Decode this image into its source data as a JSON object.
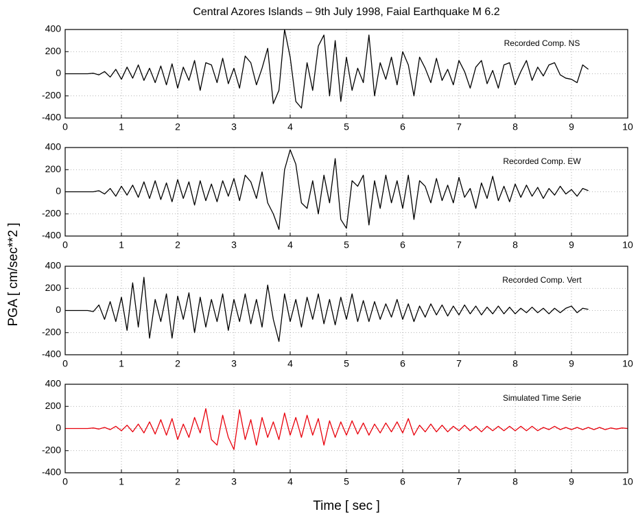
{
  "title": "Central Azores Islands – 9th July 1998, Faial Earthquake M 6.2",
  "xlabel": "Time [ sec ]",
  "ylabel": "PGA [ cm/sec**2 ]",
  "chart_data": [
    {
      "type": "line",
      "annotation": "Recorded Comp. NS",
      "color": "#000000",
      "grid": true,
      "xlim": [
        0,
        10
      ],
      "xticks": [
        0,
        1,
        2,
        3,
        4,
        5,
        6,
        7,
        8,
        9,
        10
      ],
      "ylim": [
        -400,
        400
      ],
      "yticks": [
        -400,
        -200,
        0,
        200,
        400
      ],
      "x": [
        0,
        0.1,
        0.2,
        0.3,
        0.4,
        0.5,
        0.6,
        0.7,
        0.8,
        0.9,
        1,
        1.1,
        1.2,
        1.3,
        1.4,
        1.5,
        1.6,
        1.7,
        1.8,
        1.9,
        2,
        2.1,
        2.2,
        2.3,
        2.4,
        2.5,
        2.6,
        2.7,
        2.8,
        2.9,
        3,
        3.1,
        3.2,
        3.3,
        3.4,
        3.5,
        3.6,
        3.7,
        3.8,
        3.9,
        4,
        4.1,
        4.2,
        4.3,
        4.4,
        4.5,
        4.6,
        4.7,
        4.8,
        4.9,
        5,
        5.1,
        5.2,
        5.3,
        5.4,
        5.5,
        5.6,
        5.7,
        5.8,
        5.9,
        6,
        6.1,
        6.2,
        6.3,
        6.4,
        6.5,
        6.6,
        6.7,
        6.8,
        6.9,
        7,
        7.1,
        7.2,
        7.3,
        7.4,
        7.5,
        7.6,
        7.7,
        7.8,
        7.9,
        8,
        8.1,
        8.2,
        8.3,
        8.4,
        8.5,
        8.6,
        8.7,
        8.8,
        8.9,
        9,
        9.1,
        9.2,
        9.3
      ],
      "values": [
        0,
        0,
        0,
        0,
        0,
        5,
        -10,
        20,
        -30,
        40,
        -50,
        60,
        -40,
        80,
        -60,
        50,
        -80,
        70,
        -100,
        90,
        -130,
        60,
        -60,
        120,
        -150,
        100,
        80,
        -80,
        140,
        -90,
        50,
        -130,
        160,
        100,
        -100,
        50,
        230,
        -270,
        -150,
        400,
        150,
        -250,
        -310,
        100,
        -150,
        250,
        350,
        -200,
        300,
        -250,
        150,
        -150,
        50,
        -80,
        350,
        -200,
        100,
        -50,
        150,
        -100,
        200,
        80,
        -200,
        150,
        50,
        -80,
        140,
        -60,
        40,
        -100,
        120,
        20,
        -130,
        60,
        120,
        -90,
        30,
        -130,
        80,
        100,
        -100,
        20,
        120,
        -60,
        60,
        -20,
        80,
        100,
        -10,
        -40,
        -50,
        -80,
        80,
        40
      ]
    },
    {
      "type": "line",
      "annotation": "Recorded Comp. EW",
      "color": "#000000",
      "grid": true,
      "xlim": [
        0,
        10
      ],
      "xticks": [
        0,
        1,
        2,
        3,
        4,
        5,
        6,
        7,
        8,
        9,
        10
      ],
      "ylim": [
        -400,
        400
      ],
      "yticks": [
        -400,
        -200,
        0,
        200,
        400
      ],
      "x": [
        0,
        0.1,
        0.2,
        0.3,
        0.4,
        0.5,
        0.6,
        0.7,
        0.8,
        0.9,
        1,
        1.1,
        1.2,
        1.3,
        1.4,
        1.5,
        1.6,
        1.7,
        1.8,
        1.9,
        2,
        2.1,
        2.2,
        2.3,
        2.4,
        2.5,
        2.6,
        2.7,
        2.8,
        2.9,
        3,
        3.1,
        3.2,
        3.3,
        3.4,
        3.5,
        3.6,
        3.7,
        3.8,
        3.9,
        4,
        4.1,
        4.2,
        4.3,
        4.4,
        4.5,
        4.6,
        4.7,
        4.8,
        4.9,
        5,
        5.1,
        5.2,
        5.3,
        5.4,
        5.5,
        5.6,
        5.7,
        5.8,
        5.9,
        6,
        6.1,
        6.2,
        6.3,
        6.4,
        6.5,
        6.6,
        6.7,
        6.8,
        6.9,
        7,
        7.1,
        7.2,
        7.3,
        7.4,
        7.5,
        7.6,
        7.7,
        7.8,
        7.9,
        8,
        8.1,
        8.2,
        8.3,
        8.4,
        8.5,
        8.6,
        8.7,
        8.8,
        8.9,
        9,
        9.1,
        9.2,
        9.3
      ],
      "values": [
        0,
        0,
        0,
        0,
        0,
        0,
        10,
        -20,
        30,
        -40,
        50,
        -30,
        60,
        -50,
        90,
        -60,
        100,
        -70,
        80,
        -90,
        110,
        -60,
        90,
        -120,
        100,
        -80,
        70,
        -90,
        100,
        -40,
        120,
        -80,
        150,
        90,
        -60,
        180,
        -100,
        -200,
        -340,
        200,
        380,
        250,
        -100,
        -150,
        100,
        -200,
        150,
        -100,
        300,
        -250,
        -330,
        100,
        50,
        150,
        -300,
        100,
        -150,
        150,
        -100,
        100,
        -150,
        150,
        -250,
        100,
        50,
        -100,
        120,
        -80,
        60,
        -100,
        130,
        -50,
        30,
        -150,
        80,
        -60,
        140,
        -80,
        50,
        -90,
        70,
        -50,
        60,
        -40,
        40,
        -60,
        30,
        -30,
        50,
        -20,
        20,
        -40,
        30,
        10
      ]
    },
    {
      "type": "line",
      "annotation": "Recorded Comp. Vert",
      "color": "#000000",
      "grid": true,
      "xlim": [
        0,
        10
      ],
      "xticks": [
        0,
        1,
        2,
        3,
        4,
        5,
        6,
        7,
        8,
        9,
        10
      ],
      "ylim": [
        -400,
        400
      ],
      "yticks": [
        -400,
        -200,
        0,
        200,
        400
      ],
      "x": [
        0,
        0.1,
        0.2,
        0.3,
        0.4,
        0.5,
        0.6,
        0.7,
        0.8,
        0.9,
        1,
        1.1,
        1.2,
        1.3,
        1.4,
        1.5,
        1.6,
        1.7,
        1.8,
        1.9,
        2,
        2.1,
        2.2,
        2.3,
        2.4,
        2.5,
        2.6,
        2.7,
        2.8,
        2.9,
        3,
        3.1,
        3.2,
        3.3,
        3.4,
        3.5,
        3.6,
        3.7,
        3.8,
        3.9,
        4,
        4.1,
        4.2,
        4.3,
        4.4,
        4.5,
        4.6,
        4.7,
        4.8,
        4.9,
        5,
        5.1,
        5.2,
        5.3,
        5.4,
        5.5,
        5.6,
        5.7,
        5.8,
        5.9,
        6,
        6.1,
        6.2,
        6.3,
        6.4,
        6.5,
        6.6,
        6.7,
        6.8,
        6.9,
        7,
        7.1,
        7.2,
        7.3,
        7.4,
        7.5,
        7.6,
        7.7,
        7.8,
        7.9,
        8,
        8.1,
        8.2,
        8.3,
        8.4,
        8.5,
        8.6,
        8.7,
        8.8,
        8.9,
        9,
        9.1,
        9.2,
        9.3
      ],
      "values": [
        0,
        0,
        0,
        0,
        0,
        -10,
        50,
        -80,
        80,
        -100,
        120,
        -180,
        250,
        -150,
        300,
        -250,
        100,
        -100,
        150,
        -250,
        130,
        -80,
        160,
        -200,
        120,
        -150,
        100,
        -100,
        150,
        -180,
        100,
        -100,
        150,
        -120,
        100,
        -150,
        230,
        -80,
        -280,
        150,
        -100,
        100,
        -150,
        120,
        -80,
        150,
        -120,
        100,
        -130,
        120,
        -80,
        150,
        -100,
        90,
        -100,
        80,
        -80,
        60,
        -60,
        100,
        -80,
        60,
        -100,
        40,
        -60,
        60,
        -40,
        50,
        -50,
        40,
        -40,
        50,
        -30,
        40,
        -40,
        30,
        -30,
        40,
        -30,
        30,
        -30,
        20,
        -20,
        30,
        -20,
        20,
        -30,
        20,
        -20,
        20,
        40,
        -20,
        20,
        10
      ]
    },
    {
      "type": "line",
      "annotation": "Simulated Time Serie",
      "color": "#e8000b",
      "grid": true,
      "xlim": [
        0,
        10
      ],
      "xticks": [
        0,
        1,
        2,
        3,
        4,
        5,
        6,
        7,
        8,
        9,
        10
      ],
      "ylim": [
        -400,
        400
      ],
      "yticks": [
        -400,
        -200,
        0,
        200,
        400
      ],
      "x": [
        0,
        0.1,
        0.2,
        0.3,
        0.4,
        0.5,
        0.6,
        0.7,
        0.8,
        0.9,
        1,
        1.1,
        1.2,
        1.3,
        1.4,
        1.5,
        1.6,
        1.7,
        1.8,
        1.9,
        2,
        2.1,
        2.2,
        2.3,
        2.4,
        2.5,
        2.6,
        2.7,
        2.8,
        2.9,
        3,
        3.1,
        3.2,
        3.3,
        3.4,
        3.5,
        3.6,
        3.7,
        3.8,
        3.9,
        4,
        4.1,
        4.2,
        4.3,
        4.4,
        4.5,
        4.6,
        4.7,
        4.8,
        4.9,
        5,
        5.1,
        5.2,
        5.3,
        5.4,
        5.5,
        5.6,
        5.7,
        5.8,
        5.9,
        6,
        6.1,
        6.2,
        6.3,
        6.4,
        6.5,
        6.6,
        6.7,
        6.8,
        6.9,
        7,
        7.1,
        7.2,
        7.3,
        7.4,
        7.5,
        7.6,
        7.7,
        7.8,
        7.9,
        8,
        8.1,
        8.2,
        8.3,
        8.4,
        8.5,
        8.6,
        8.7,
        8.8,
        8.9,
        9,
        9.1,
        9.2,
        9.3,
        9.4,
        9.5,
        9.6,
        9.7,
        9.8,
        9.9,
        10
      ],
      "values": [
        0,
        0,
        0,
        0,
        0,
        5,
        -5,
        10,
        -10,
        20,
        -20,
        30,
        -30,
        40,
        -40,
        60,
        -50,
        80,
        -60,
        90,
        -100,
        40,
        -80,
        100,
        -40,
        180,
        -100,
        -150,
        120,
        -80,
        -190,
        170,
        -100,
        80,
        -150,
        100,
        -80,
        60,
        -100,
        140,
        -60,
        100,
        -80,
        120,
        -60,
        90,
        -150,
        70,
        -80,
        60,
        -60,
        70,
        -50,
        50,
        -60,
        40,
        -40,
        50,
        -30,
        60,
        -40,
        90,
        -60,
        30,
        -30,
        40,
        -30,
        30,
        -30,
        20,
        -20,
        30,
        -20,
        20,
        -30,
        20,
        -20,
        20,
        -20,
        20,
        -20,
        20,
        -20,
        20,
        -20,
        10,
        -10,
        20,
        -10,
        10,
        -10,
        10,
        -10,
        10,
        -10,
        10,
        -10,
        5,
        -5,
        5,
        0
      ]
    }
  ]
}
